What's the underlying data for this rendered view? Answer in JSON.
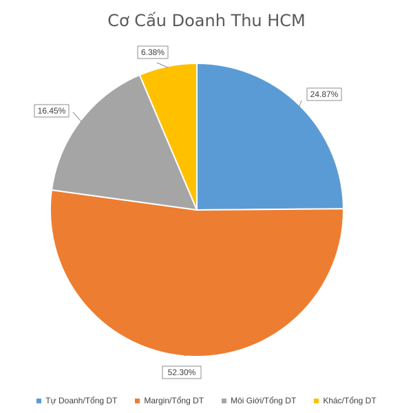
{
  "chart_data": {
    "type": "pie",
    "title": "Cơ Cấu Doanh Thu HCM",
    "series": [
      {
        "name": "",
        "values": [
          24.87,
          52.3,
          16.45,
          6.38
        ]
      }
    ],
    "categories": [
      "Tự Doanh/Tổng DT",
      "Margin/Tổng DT",
      "Môi Giới/Tổng DT",
      "Khác/Tổng DT"
    ],
    "data_labels": [
      "24.87%",
      "52.30%",
      "16.45%",
      "6.38%"
    ],
    "colors": [
      "#5b9bd5",
      "#ed7d31",
      "#a5a5a5",
      "#ffc000"
    ],
    "start_angle_deg": 0,
    "direction": "clockwise",
    "legend_position": "bottom",
    "data_label_icon": "callout-box"
  }
}
